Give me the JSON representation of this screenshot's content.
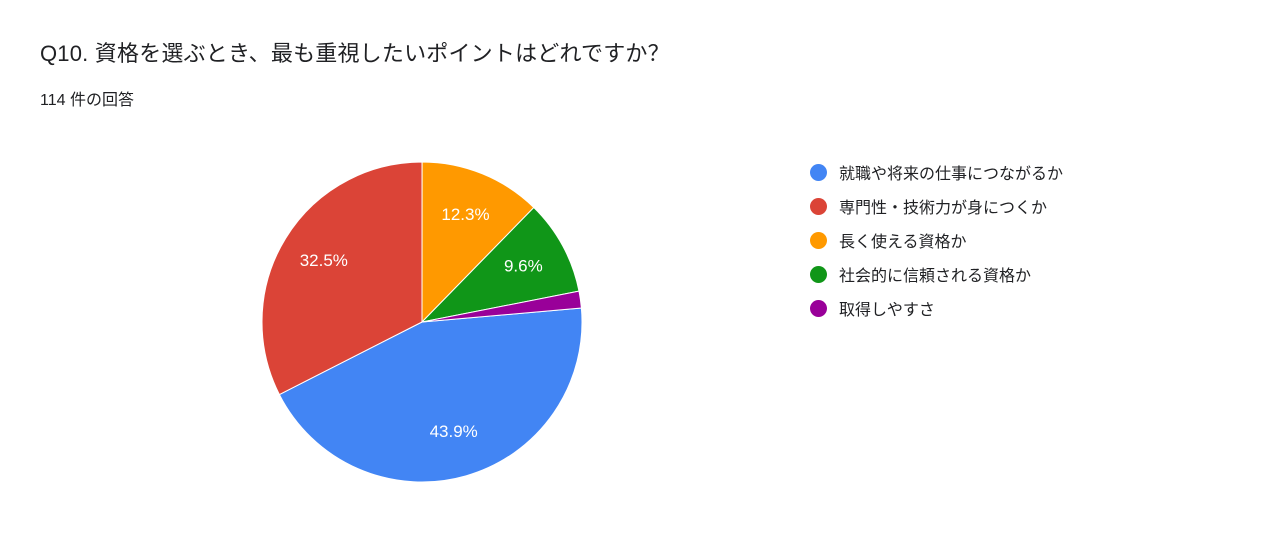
{
  "header": {
    "title": "Q10. 資格を選ぶとき、最も重視したいポイントはどれですか？",
    "response_count": "114 件の回答"
  },
  "chart_data": {
    "type": "pie",
    "title": "Q10. 資格を選ぶとき、最も重視したいポイントはどれですか？",
    "subtitle": "114 件の回答",
    "total_responses": 114,
    "legend_position": "right",
    "direction": "clockwise",
    "start_angle_deg": 85,
    "slice_label_color": "#ffffff",
    "slices": [
      {
        "label": "就職や将来の仕事につながるか",
        "percent": 43.9,
        "percent_label": "43.9%",
        "color": "#4285f4",
        "show_label": true
      },
      {
        "label": "専門性・技術力が身につくか",
        "percent": 32.5,
        "percent_label": "32.5%",
        "color": "#db4437",
        "show_label": true
      },
      {
        "label": "長く使える資格か",
        "percent": 12.3,
        "percent_label": "12.3%",
        "color": "#ff9900",
        "show_label": true
      },
      {
        "label": "社会的に信頼される資格か",
        "percent": 9.6,
        "percent_label": "9.6%",
        "color": "#109618",
        "show_label": true
      },
      {
        "label": "取得しやすさ",
        "percent": 1.7,
        "percent_label": "1.7%",
        "color": "#990099",
        "show_label": false
      }
    ]
  }
}
